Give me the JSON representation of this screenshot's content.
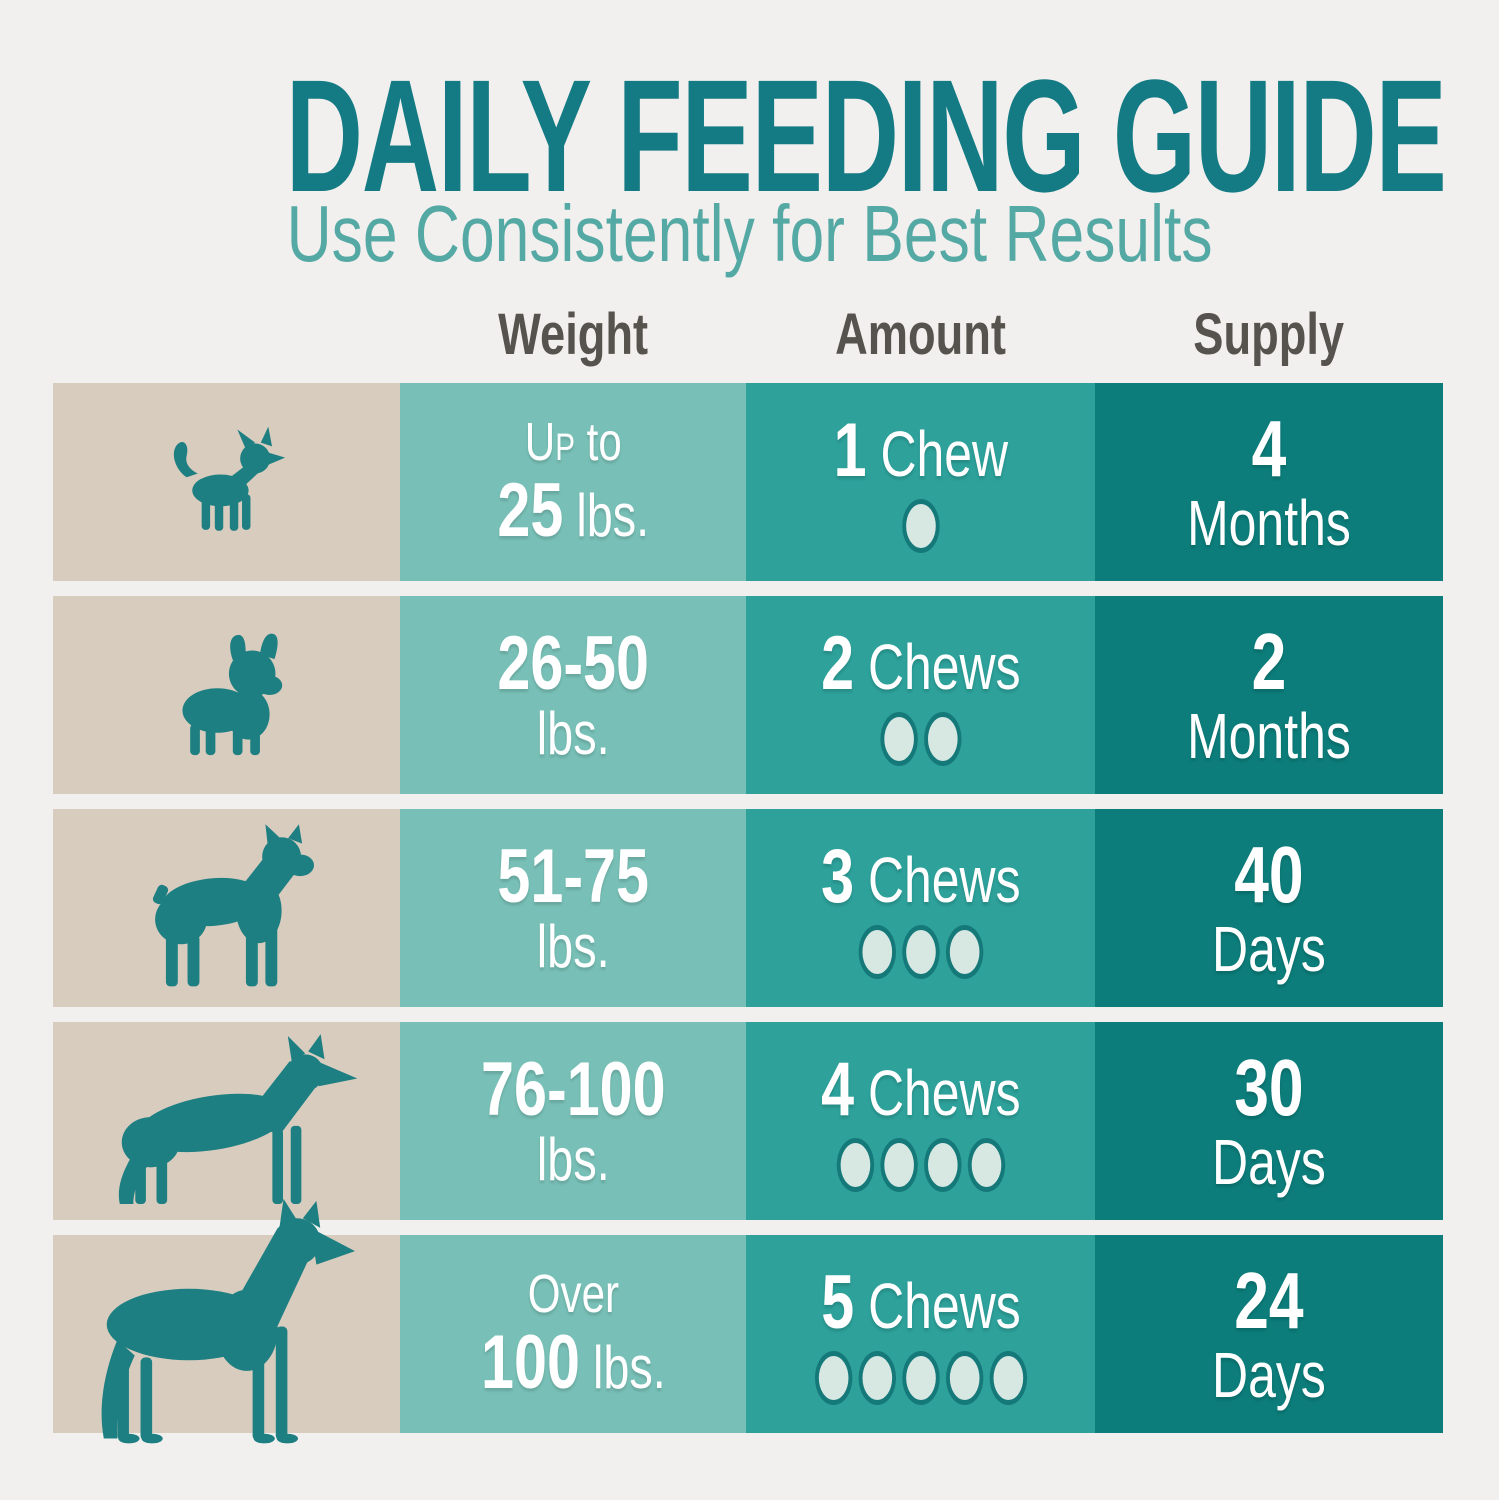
{
  "title": "DAILY FEEDING GUIDE",
  "subtitle": "Use Consistently for Best Results",
  "columns": {
    "weight": "Weight",
    "amount": "Amount",
    "supply": "Supply"
  },
  "colors": {
    "background": "#f2f0ee",
    "dog_column": "#d8ccbf",
    "weight_column": "#78c0b7",
    "amount_column": "#2da19a",
    "supply_column": "#0c7d7a",
    "dog_silhouette": "#1d7f81",
    "title_text": "#147b84",
    "subtitle_text": "#55a9a4",
    "header_text": "#56524d",
    "cell_text": "#ffffff",
    "chew_dot_fill": "#d7e8e3",
    "chew_dot_border": "#15797a"
  },
  "chart_data": {
    "type": "table",
    "title": "DAILY FEEDING GUIDE",
    "subtitle": "Use Consistently for Best Results",
    "columns": [
      "Weight",
      "Amount",
      "Supply"
    ],
    "rows": [
      {
        "dog": "chihuahua",
        "weight": "Up to 25 lbs.",
        "amount": "1 Chew",
        "chews": 1,
        "supply": "4 Months"
      },
      {
        "dog": "french-bulldog",
        "weight": "26-50 lbs.",
        "amount": "2 Chews",
        "chews": 2,
        "supply": "2 Months"
      },
      {
        "dog": "boxer",
        "weight": "51-75 lbs.",
        "amount": "3 Chews",
        "chews": 3,
        "supply": "40 Days"
      },
      {
        "dog": "german-shepherd",
        "weight": "76-100 lbs.",
        "amount": "4 Chews",
        "chews": 4,
        "supply": "30 Days"
      },
      {
        "dog": "great-dane",
        "weight": "Over 100 lbs.",
        "amount": "5 Chews",
        "chews": 5,
        "supply": "24 Days"
      }
    ]
  },
  "rows": [
    {
      "dog": "chihuahua",
      "weight": {
        "line1_smallcaps": "Up",
        "line1_regular": "to",
        "line2_bold": "25",
        "line2_regular": "lbs."
      },
      "amount": {
        "count": "1",
        "label": "Chew",
        "chews": 1
      },
      "supply": {
        "value": "4",
        "unit": "Months"
      }
    },
    {
      "dog": "french-bulldog",
      "weight": {
        "line1_bold": "26-50",
        "line2_regular": "lbs."
      },
      "amount": {
        "count": "2",
        "label": "Chews",
        "chews": 2
      },
      "supply": {
        "value": "2",
        "unit": "Months"
      }
    },
    {
      "dog": "boxer",
      "weight": {
        "line1_bold": "51-75",
        "line2_regular": "lbs."
      },
      "amount": {
        "count": "3",
        "label": "Chews",
        "chews": 3
      },
      "supply": {
        "value": "40",
        "unit": "Days"
      }
    },
    {
      "dog": "german-shepherd",
      "weight": {
        "line1_bold": "76-100",
        "line2_regular": "lbs."
      },
      "amount": {
        "count": "4",
        "label": "Chews",
        "chews": 4
      },
      "supply": {
        "value": "30",
        "unit": "Days"
      }
    },
    {
      "dog": "great-dane",
      "weight": {
        "line1_regular": "Over",
        "line2_bold": "100",
        "line2_regular": "lbs."
      },
      "amount": {
        "count": "5",
        "label": "Chews",
        "chews": 5
      },
      "supply": {
        "value": "24",
        "unit": "Days"
      }
    }
  ]
}
